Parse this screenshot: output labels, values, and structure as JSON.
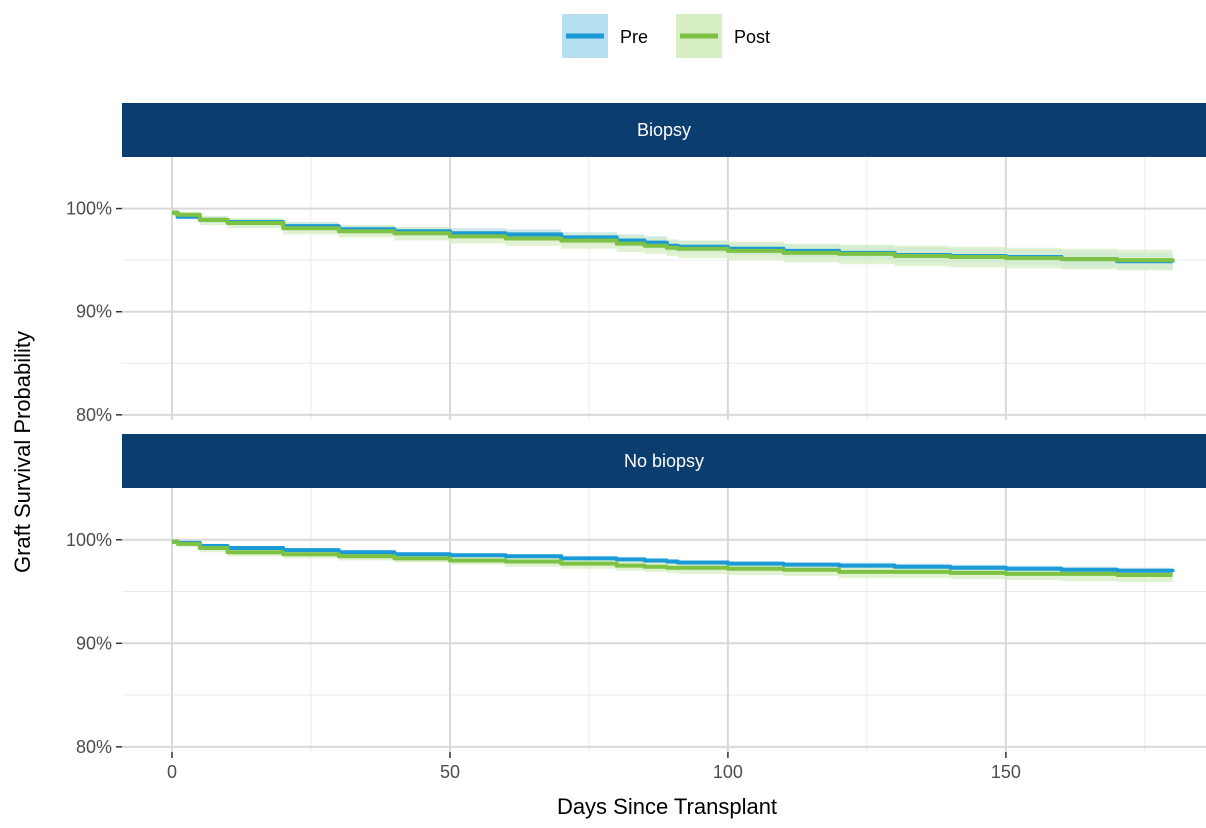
{
  "chart_data": {
    "type": "line",
    "xlabel": "Days Since Transplant",
    "ylabel": "Graft Survival Probability",
    "xlim": [
      -9,
      186
    ],
    "ylim": [
      79.5,
      105
    ],
    "x_ticks": [
      0,
      50,
      100,
      150
    ],
    "x_tick_labels": [
      "0",
      "50",
      "100",
      "150"
    ],
    "y_ticks": [
      80,
      90,
      100
    ],
    "y_tick_labels": [
      "80%",
      "90%",
      "100%"
    ],
    "grid": true,
    "legend_position": "top",
    "legend": [
      {
        "name": "Pre",
        "color": "#1a9ad6",
        "band_color": "#b7dff2"
      },
      {
        "name": "Post",
        "color": "#7dc242",
        "band_color": "#d7edc4"
      }
    ],
    "strip_color": "#0b3d6e",
    "panels": [
      {
        "label": "Biopsy",
        "series": [
          {
            "name": "Pre",
            "x": [
              0,
              1,
              5,
              10,
              20,
              30,
              40,
              50,
              60,
              70,
              80,
              85,
              89,
              91,
              100,
              110,
              120,
              130,
              140,
              150,
              160,
              170,
              180
            ],
            "y": [
              99.6,
              99.2,
              98.9,
              98.7,
              98.3,
              98.0,
              97.8,
              97.6,
              97.5,
              97.2,
              96.9,
              96.7,
              96.4,
              96.3,
              96.1,
              95.9,
              95.7,
              95.5,
              95.4,
              95.3,
              95.1,
              94.9,
              94.8
            ],
            "lower": [
              99.4,
              99.0,
              98.6,
              98.3,
              97.9,
              97.6,
              97.3,
              97.1,
              96.9,
              96.6,
              96.3,
              96.1,
              95.8,
              95.7,
              95.5,
              95.2,
              95.0,
              94.8,
              94.7,
              94.5,
              94.3,
              94.1,
              93.9
            ],
            "upper": [
              99.8,
              99.5,
              99.2,
              99.0,
              98.7,
              98.4,
              98.2,
              98.1,
              98.0,
              97.7,
              97.5,
              97.3,
              97.0,
              96.9,
              96.7,
              96.5,
              96.4,
              96.2,
              96.1,
              96.0,
              95.9,
              95.7,
              95.6
            ]
          },
          {
            "name": "Post",
            "x": [
              0,
              1,
              5,
              10,
              20,
              30,
              40,
              50,
              60,
              70,
              80,
              85,
              89,
              91,
              100,
              110,
              120,
              130,
              140,
              150,
              160,
              170,
              180
            ],
            "y": [
              99.6,
              99.4,
              98.9,
              98.6,
              98.1,
              97.8,
              97.6,
              97.3,
              97.1,
              96.9,
              96.6,
              96.4,
              96.2,
              96.1,
              95.9,
              95.7,
              95.6,
              95.4,
              95.3,
              95.2,
              95.1,
              95.0,
              94.9
            ],
            "lower": [
              99.3,
              99.0,
              98.4,
              98.1,
              97.5,
              97.2,
              96.9,
              96.6,
              96.4,
              96.1,
              95.8,
              95.6,
              95.4,
              95.2,
              95.0,
              94.8,
              94.6,
              94.4,
              94.3,
              94.2,
              94.1,
              94.0,
              93.8
            ],
            "upper": [
              99.9,
              99.7,
              99.3,
              99.1,
              98.6,
              98.4,
              98.2,
              97.9,
              97.8,
              97.6,
              97.4,
              97.2,
              97.0,
              96.9,
              96.8,
              96.6,
              96.5,
              96.4,
              96.3,
              96.2,
              96.1,
              96.0,
              95.9
            ]
          }
        ]
      },
      {
        "label": "No biopsy",
        "series": [
          {
            "name": "Pre",
            "x": [
              0,
              1,
              5,
              10,
              20,
              30,
              40,
              50,
              60,
              70,
              80,
              85,
              89,
              91,
              100,
              110,
              120,
              130,
              140,
              150,
              160,
              170,
              180
            ],
            "y": [
              99.8,
              99.7,
              99.4,
              99.2,
              99.0,
              98.8,
              98.6,
              98.5,
              98.4,
              98.2,
              98.1,
              98.0,
              97.9,
              97.8,
              97.7,
              97.6,
              97.5,
              97.4,
              97.3,
              97.2,
              97.1,
              97.0,
              96.9
            ],
            "lower": [
              99.7,
              99.5,
              99.2,
              99.0,
              98.8,
              98.6,
              98.4,
              98.3,
              98.2,
              98.0,
              97.8,
              97.7,
              97.6,
              97.5,
              97.4,
              97.3,
              97.2,
              97.1,
              97.0,
              96.9,
              96.8,
              96.7,
              96.6
            ],
            "upper": [
              99.9,
              99.8,
              99.6,
              99.4,
              99.2,
              99.0,
              98.8,
              98.7,
              98.6,
              98.4,
              98.3,
              98.2,
              98.1,
              98.0,
              97.9,
              97.8,
              97.8,
              97.7,
              97.6,
              97.5,
              97.4,
              97.3,
              97.2
            ]
          },
          {
            "name": "Post",
            "x": [
              0,
              1,
              5,
              10,
              20,
              30,
              40,
              50,
              60,
              70,
              80,
              85,
              89,
              91,
              100,
              110,
              120,
              130,
              140,
              150,
              160,
              170,
              180
            ],
            "y": [
              99.8,
              99.6,
              99.2,
              98.8,
              98.6,
              98.4,
              98.2,
              98.0,
              97.9,
              97.7,
              97.5,
              97.4,
              97.3,
              97.3,
              97.2,
              97.1,
              96.9,
              96.9,
              96.8,
              96.7,
              96.7,
              96.6,
              96.6
            ],
            "lower": [
              99.6,
              99.3,
              98.8,
              98.4,
              98.2,
              98.0,
              97.8,
              97.6,
              97.4,
              97.2,
              97.0,
              96.9,
              96.8,
              96.7,
              96.6,
              96.5,
              96.3,
              96.3,
              96.2,
              96.1,
              96.0,
              95.9,
              95.9
            ],
            "upper": [
              99.9,
              99.8,
              99.5,
              99.2,
              99.0,
              98.8,
              98.6,
              98.4,
              98.3,
              98.2,
              98.0,
              97.9,
              97.8,
              97.8,
              97.7,
              97.6,
              97.5,
              97.4,
              97.4,
              97.3,
              97.3,
              97.2,
              97.2
            ]
          }
        ]
      }
    ]
  }
}
